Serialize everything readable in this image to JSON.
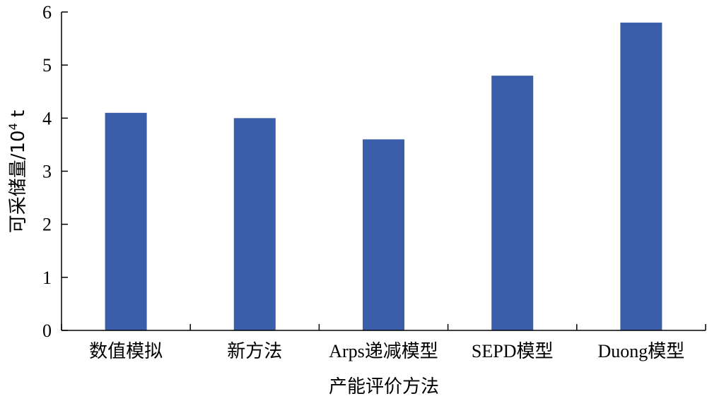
{
  "chart_data": {
    "type": "bar",
    "title": "",
    "xlabel": "产能评价方法",
    "ylabel_main": "可采储量/10",
    "ylabel_sup": "4",
    "ylabel_unit": " t",
    "categories": [
      "数值模拟",
      "新方法",
      "Arps递减模型",
      "SEPD模型",
      "Duong模型"
    ],
    "series": [
      {
        "values": [
          4.1,
          4.0,
          3.6,
          4.8,
          5.8
        ]
      }
    ],
    "ylim": [
      0,
      6
    ],
    "yticks": [
      "0",
      "1",
      "2",
      "3",
      "4",
      "5",
      "6"
    ],
    "grid": false,
    "bar_color": "#3a5ea9"
  }
}
